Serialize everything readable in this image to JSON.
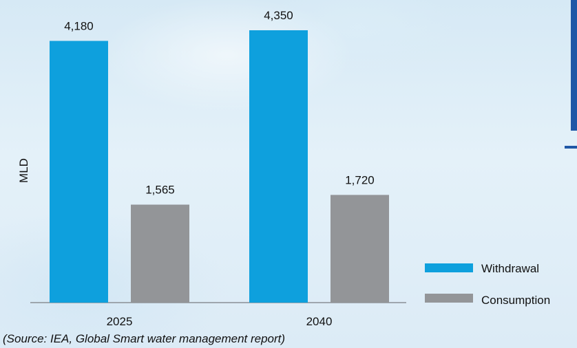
{
  "chart_data": {
    "type": "bar",
    "title": "",
    "categories": [
      "2025",
      "2040"
    ],
    "series": [
      {
        "name": "Withdrawal",
        "values": [
          4180,
          4350
        ],
        "labels": [
          "4,180",
          "4,350"
        ],
        "color": "#0ea0dd"
      },
      {
        "name": "Consumption",
        "values": [
          1565,
          1720
        ],
        "labels": [
          "1,565",
          "1,720"
        ],
        "color": "#939598"
      }
    ],
    "ylabel": "MLD",
    "xlabel": "",
    "ylim": [
      0,
      4350
    ],
    "grid": false,
    "legend": "right"
  },
  "source_note": "(Source: IEA, Global Smart water management report)",
  "colors": {
    "axis": "#8a8f95",
    "text": "#111111",
    "accent": "#1f57a6"
  }
}
